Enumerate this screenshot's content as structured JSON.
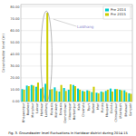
{
  "chart_data": {
    "type": "bar",
    "title": "Fig. 3. Groundwater level fluctuations in Haridwar district during 2014-15",
    "ylabel": "Groundwater level (m)",
    "annotation": "Laldhang",
    "categories": [
      "Bhagwanpur",
      "Roorkee",
      "Manglour",
      "Laksar",
      "Hardwar",
      "Laldhang",
      "Raiwala",
      "Rishikesh",
      "Doiwala",
      "Clementtown",
      "Vikasnagar",
      "Herbertpur",
      "Kalsi",
      "Chakrata",
      "Tyuni",
      "Barkot",
      "Mori",
      "Purola",
      "Naugaon",
      "Dunda",
      "Chinyalisaur",
      "Uttarkashi",
      "Bhatwari",
      "Gangotri"
    ],
    "series": [
      {
        "name": "Pre 2014",
        "color": "#00cccc",
        "values": [
          10.5,
          13.5,
          14.0,
          12.5,
          11.0,
          15.0,
          10.0,
          12.0,
          8.5,
          11.5,
          10.0,
          14.0,
          11.0,
          9.0,
          9.5,
          8.0,
          7.5,
          8.5,
          9.0,
          11.0,
          10.5,
          10.0,
          9.5,
          7.0
        ]
      },
      {
        "name": "Pre 2015",
        "color": "#cccc00",
        "values": [
          10.0,
          13.0,
          13.5,
          16.0,
          12.0,
          75.0,
          10.5,
          9.0,
          14.0,
          9.0,
          14.5,
          13.0,
          10.0,
          8.5,
          9.0,
          12.5,
          7.0,
          8.0,
          10.0,
          8.5,
          10.5,
          9.5,
          8.0,
          6.5
        ]
      }
    ],
    "ylim": [
      0,
      82
    ],
    "yticks": [
      {
        "value": 0,
        "label": "0.00"
      },
      {
        "value": 10,
        "label": "10.00"
      },
      {
        "value": 20,
        "label": "20.00"
      },
      {
        "value": 30,
        "label": "30.00"
      },
      {
        "value": 40,
        "label": "40.00"
      },
      {
        "value": 50,
        "label": "50.00"
      },
      {
        "value": 60,
        "label": "60.00"
      },
      {
        "value": 70,
        "label": "70.00"
      },
      {
        "value": 80,
        "label": "80.00"
      }
    ],
    "grid": true,
    "legend": "upper right"
  }
}
